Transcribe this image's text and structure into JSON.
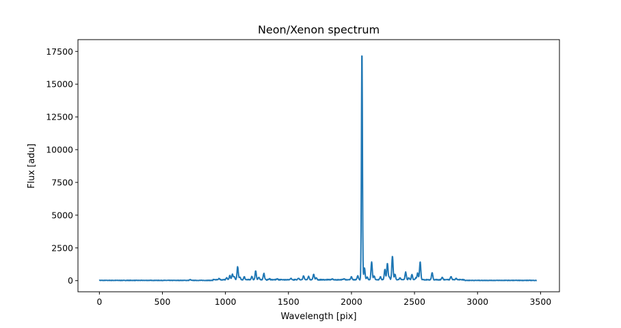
{
  "chart_data": {
    "type": "line",
    "title": "Neon/Xenon spectrum",
    "xlabel": "Wavelength [pix]",
    "ylabel": "Flux [adu]",
    "xlim": [
      -170,
      3650
    ],
    "ylim": [
      -850,
      18400
    ],
    "xticks": [
      0,
      500,
      1000,
      1500,
      2000,
      2500,
      3000,
      3500
    ],
    "yticks": [
      0,
      2500,
      5000,
      7500,
      10000,
      12500,
      15000,
      17500
    ],
    "xtick_labels": [
      "0",
      "500",
      "1000",
      "1500",
      "2000",
      "2500",
      "3000",
      "3500"
    ],
    "ytick_labels": [
      "0",
      "2500",
      "5000",
      "7500",
      "10000",
      "12500",
      "15000",
      "17500"
    ],
    "grid": false,
    "legend": null,
    "line_color": "#1f77b4",
    "x_range": [
      0,
      3470
    ],
    "baseline": 20,
    "peaks": [
      {
        "x": 720,
        "y": 60
      },
      {
        "x": 950,
        "y": 90
      },
      {
        "x": 1010,
        "y": 150
      },
      {
        "x": 1035,
        "y": 320
      },
      {
        "x": 1055,
        "y": 430
      },
      {
        "x": 1070,
        "y": 250
      },
      {
        "x": 1097,
        "y": 1000
      },
      {
        "x": 1115,
        "y": 200
      },
      {
        "x": 1150,
        "y": 230
      },
      {
        "x": 1210,
        "y": 250
      },
      {
        "x": 1240,
        "y": 680
      },
      {
        "x": 1265,
        "y": 200
      },
      {
        "x": 1305,
        "y": 500
      },
      {
        "x": 1350,
        "y": 80
      },
      {
        "x": 1410,
        "y": 70
      },
      {
        "x": 1520,
        "y": 90
      },
      {
        "x": 1580,
        "y": 120
      },
      {
        "x": 1620,
        "y": 300
      },
      {
        "x": 1660,
        "y": 250
      },
      {
        "x": 1700,
        "y": 420
      },
      {
        "x": 1720,
        "y": 150
      },
      {
        "x": 1850,
        "y": 60
      },
      {
        "x": 1940,
        "y": 80
      },
      {
        "x": 2000,
        "y": 220
      },
      {
        "x": 2050,
        "y": 300
      },
      {
        "x": 2083,
        "y": 17600
      },
      {
        "x": 2103,
        "y": 900
      },
      {
        "x": 2125,
        "y": 200
      },
      {
        "x": 2160,
        "y": 1350
      },
      {
        "x": 2180,
        "y": 280
      },
      {
        "x": 2230,
        "y": 220
      },
      {
        "x": 2265,
        "y": 800
      },
      {
        "x": 2285,
        "y": 1250
      },
      {
        "x": 2300,
        "y": 200
      },
      {
        "x": 2325,
        "y": 1800
      },
      {
        "x": 2345,
        "y": 420
      },
      {
        "x": 2385,
        "y": 150
      },
      {
        "x": 2430,
        "y": 600
      },
      {
        "x": 2455,
        "y": 150
      },
      {
        "x": 2480,
        "y": 400
      },
      {
        "x": 2510,
        "y": 130
      },
      {
        "x": 2525,
        "y": 500
      },
      {
        "x": 2545,
        "y": 1350
      },
      {
        "x": 2640,
        "y": 550
      },
      {
        "x": 2720,
        "y": 200
      },
      {
        "x": 2790,
        "y": 240
      },
      {
        "x": 2830,
        "y": 90
      }
    ]
  }
}
